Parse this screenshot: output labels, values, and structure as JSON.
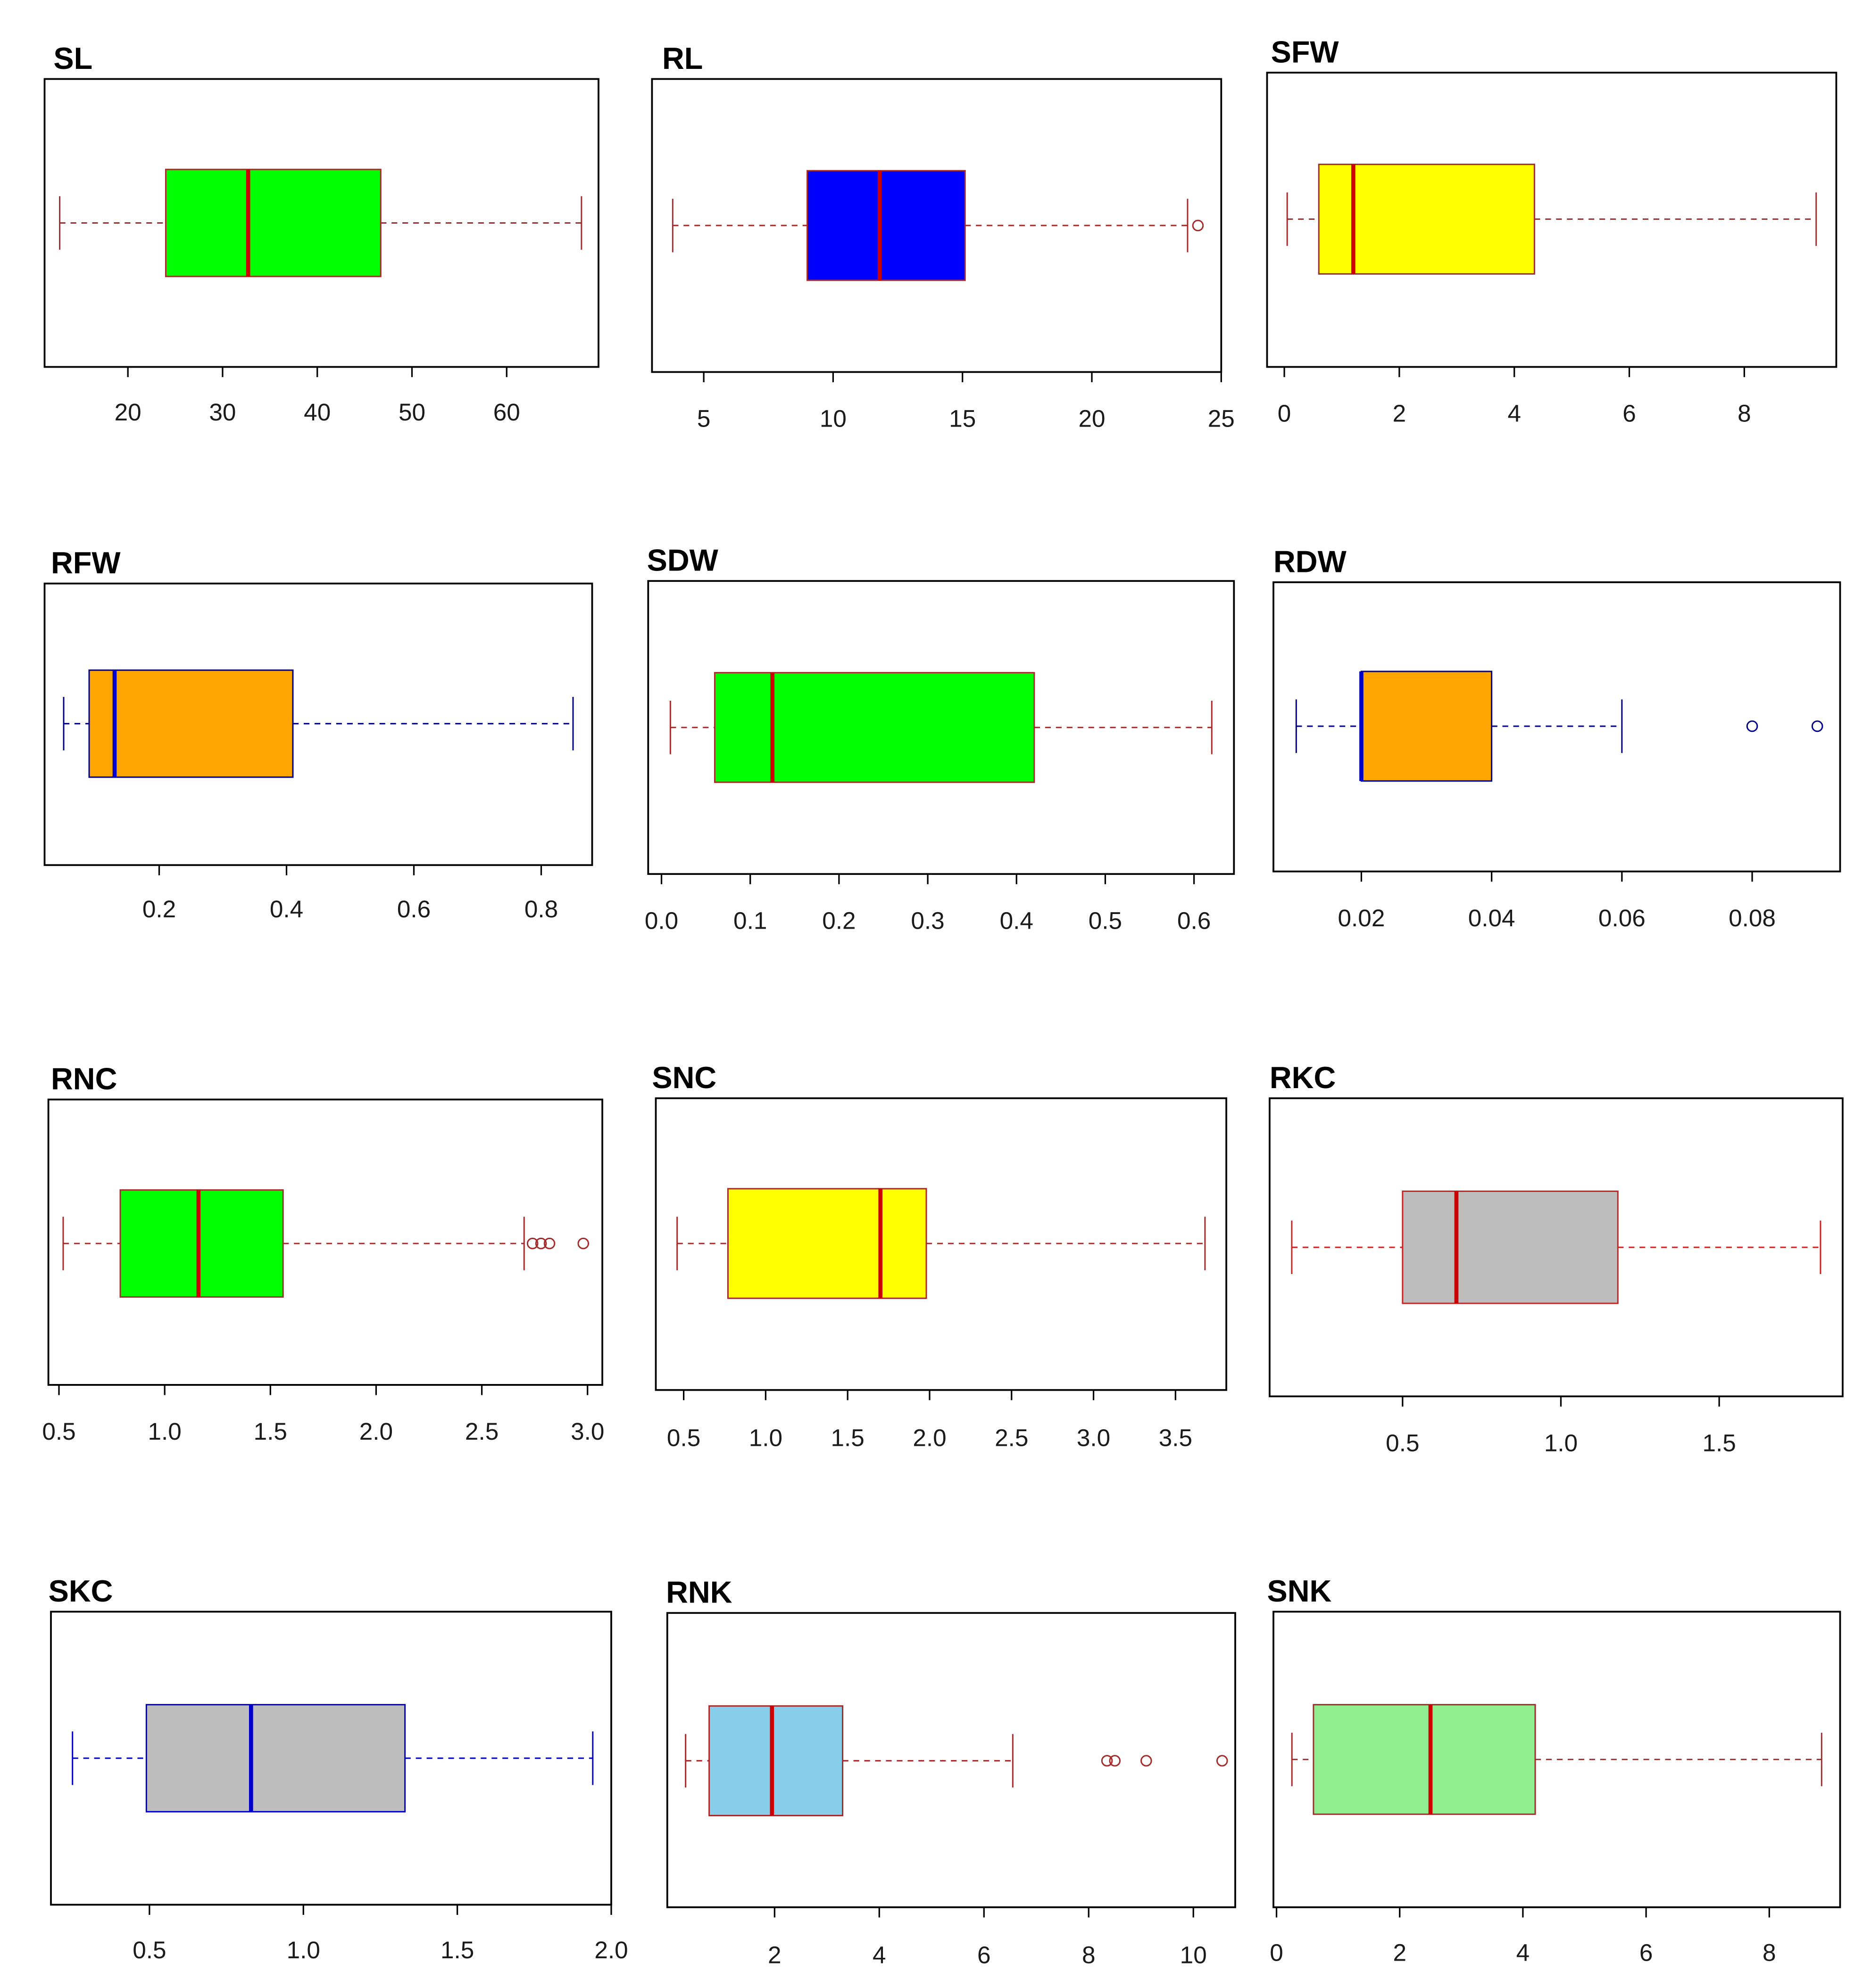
{
  "chart_data": [
    {
      "type": "boxplot",
      "title": "SL",
      "fill": "#00ff00",
      "line_color": "#a52a2a",
      "median_color": "#cc0000",
      "whisker_low": 12.8,
      "q1": 24.0,
      "median": 32.7,
      "q3": 46.7,
      "whisker_high": 67.9,
      "outliers": [],
      "xlim": [
        11.2,
        69.7
      ],
      "ticks": [
        20,
        30,
        40,
        50,
        60
      ],
      "tick_labels": [
        "20",
        "30",
        "40",
        "50",
        "60"
      ]
    },
    {
      "type": "boxplot",
      "title": "RL",
      "fill": "#0000ff",
      "line_color": "#a52a2a",
      "median_color": "#cc0000",
      "whisker_low": 3.8,
      "q1": 9.0,
      "median": 11.8,
      "q3": 15.1,
      "whisker_high": 23.7,
      "outliers": [
        24.1
      ],
      "xlim": [
        3.0,
        25.0
      ],
      "ticks": [
        5,
        10,
        15,
        20,
        25
      ],
      "tick_labels": [
        "5",
        "10",
        "15",
        "20",
        "25"
      ]
    },
    {
      "type": "boxplot",
      "title": "SFW",
      "fill": "#ffff00",
      "line_color": "#a52a2a",
      "median_color": "#cc0000",
      "whisker_low": 0.05,
      "q1": 0.6,
      "median": 1.2,
      "q3": 4.35,
      "whisker_high": 9.25,
      "outliers": [],
      "xlim": [
        -0.3,
        9.6
      ],
      "ticks": [
        0,
        2,
        4,
        6,
        8
      ],
      "tick_labels": [
        "0",
        "2",
        "4",
        "6",
        "8"
      ]
    },
    {
      "type": "boxplot",
      "title": "RFW",
      "fill": "#ffa500",
      "line_color": "#00008b",
      "median_color": "#0000cc",
      "whisker_low": 0.05,
      "q1": 0.09,
      "median": 0.13,
      "q3": 0.41,
      "whisker_high": 0.85,
      "outliers": [],
      "xlim": [
        0.02,
        0.88
      ],
      "ticks": [
        0.2,
        0.4,
        0.6,
        0.8
      ],
      "tick_labels": [
        "0.2",
        "0.4",
        "0.6",
        "0.8"
      ]
    },
    {
      "type": "boxplot",
      "title": "SDW",
      "fill": "#00ff00",
      "line_color": "#a52a2a",
      "median_color": "#cc0000",
      "whisker_low": 0.01,
      "q1": 0.06,
      "median": 0.125,
      "q3": 0.42,
      "whisker_high": 0.62,
      "outliers": [],
      "xlim": [
        -0.015,
        0.645
      ],
      "ticks": [
        0.0,
        0.1,
        0.2,
        0.3,
        0.4,
        0.5,
        0.6
      ],
      "tick_labels": [
        "0.0",
        "0.1",
        "0.2",
        "0.3",
        "0.4",
        "0.5",
        "0.6"
      ]
    },
    {
      "type": "boxplot",
      "title": "RDW",
      "fill": "#ffa500",
      "line_color": "#00008b",
      "median_color": "#0000cc",
      "whisker_low": 0.01,
      "q1": 0.02,
      "median": 0.02,
      "q3": 0.04,
      "whisker_high": 0.06,
      "outliers": [
        0.08,
        0.09
      ],
      "xlim": [
        0.0065,
        0.0935
      ],
      "ticks": [
        0.02,
        0.04,
        0.06,
        0.08
      ],
      "tick_labels": [
        "0.02",
        "0.04",
        "0.06",
        "0.08"
      ]
    },
    {
      "type": "boxplot",
      "title": "RNC",
      "fill": "#00ff00",
      "line_color": "#a52a2a",
      "median_color": "#cc0000",
      "whisker_low": 0.52,
      "q1": 0.79,
      "median": 1.16,
      "q3": 1.56,
      "whisker_high": 2.7,
      "outliers": [
        2.74,
        2.78,
        2.82,
        2.98
      ],
      "xlim": [
        0.45,
        3.07
      ],
      "ticks": [
        0.5,
        1.0,
        1.5,
        2.0,
        2.5,
        3.0
      ],
      "tick_labels": [
        "0.5",
        "1.0",
        "1.5",
        "2.0",
        "2.5",
        "3.0"
      ]
    },
    {
      "type": "boxplot",
      "title": "SNC",
      "fill": "#ffff00",
      "line_color": "#a52a2a",
      "median_color": "#cc0000",
      "whisker_low": 0.46,
      "q1": 0.77,
      "median": 1.7,
      "q3": 1.98,
      "whisker_high": 3.68,
      "outliers": [],
      "xlim": [
        0.33,
        3.81
      ],
      "ticks": [
        0.5,
        1.0,
        1.5,
        2.0,
        2.5,
        3.0,
        3.5
      ],
      "tick_labels": [
        "0.5",
        "1.0",
        "1.5",
        "2.0",
        "2.5",
        "3.0",
        "3.5"
      ]
    },
    {
      "type": "boxplot",
      "title": "RKC",
      "fill": "#bebebe",
      "line_color": "#cc2222",
      "median_color": "#cc0000",
      "whisker_low": 0.15,
      "q1": 0.5,
      "median": 0.67,
      "q3": 1.18,
      "whisker_high": 1.82,
      "outliers": [],
      "xlim": [
        0.08,
        1.89
      ],
      "ticks": [
        0.5,
        1.0,
        1.5
      ],
      "tick_labels": [
        "0.5",
        "1.0",
        "1.5"
      ]
    },
    {
      "type": "boxplot",
      "title": "SKC",
      "fill": "#bebebe",
      "line_color": "#0000cc",
      "median_color": "#0000cc",
      "whisker_low": 0.25,
      "q1": 0.49,
      "median": 0.83,
      "q3": 1.33,
      "whisker_high": 1.94,
      "outliers": [],
      "xlim": [
        0.18,
        2.0
      ],
      "ticks": [
        0.5,
        1.0,
        1.5,
        2.0
      ],
      "tick_labels": [
        "0.5",
        "1.0",
        "1.5",
        "2.0"
      ]
    },
    {
      "type": "boxplot",
      "title": "RNK",
      "fill": "#87ceeb",
      "line_color": "#a52a2a",
      "median_color": "#cc0000",
      "whisker_low": 0.3,
      "q1": 0.75,
      "median": 1.95,
      "q3": 3.3,
      "whisker_high": 6.55,
      "outliers": [
        8.35,
        8.5,
        9.1,
        10.55
      ],
      "xlim": [
        -0.05,
        10.8
      ],
      "ticks": [
        2,
        4,
        6,
        8,
        10
      ],
      "tick_labels": [
        "2",
        "4",
        "6",
        "8",
        "10"
      ]
    },
    {
      "type": "boxplot",
      "title": "SNK",
      "fill": "#90ee90",
      "line_color": "#a52a2a",
      "median_color": "#cc0000",
      "whisker_low": 0.25,
      "q1": 0.6,
      "median": 2.5,
      "q3": 4.2,
      "whisker_high": 8.85,
      "outliers": [],
      "xlim": [
        -0.05,
        9.15
      ],
      "ticks": [
        0,
        2,
        4,
        6,
        8
      ],
      "tick_labels": [
        "0",
        "2",
        "4",
        "6",
        "8"
      ]
    }
  ]
}
